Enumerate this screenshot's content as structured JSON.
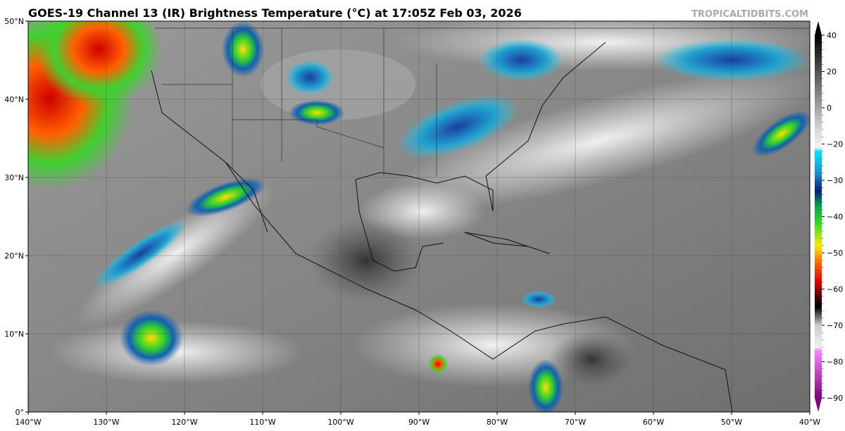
{
  "header": {
    "title": "GOES-19 Channel 13 (IR) Brightness Temperature (°C) at 17:05Z Feb 03, 2026",
    "source": "TROPICALTIDBITS.COM"
  },
  "map": {
    "lon_labels": [
      "140°W",
      "130°W",
      "120°W",
      "110°W",
      "100°W",
      "90°W",
      "80°W",
      "70°W",
      "60°W",
      "50°W",
      "40°W"
    ],
    "lat_labels": [
      "50°N",
      "40°N",
      "30°N",
      "20°N",
      "10°N",
      "0°"
    ]
  },
  "colorbar": {
    "ticks": [
      40,
      20,
      0,
      {
        "value": -20,
        "label": "−20"
      },
      {
        "value": -30,
        "label": "−30"
      },
      {
        "value": -40,
        "label": "−40"
      },
      {
        "value": -50,
        "label": "−50"
      },
      {
        "value": -60,
        "label": "−60"
      },
      {
        "value": -70,
        "label": "−70"
      },
      {
        "value": -80,
        "label": "−80"
      },
      {
        "value": -90,
        "label": "−90"
      }
    ]
  }
}
